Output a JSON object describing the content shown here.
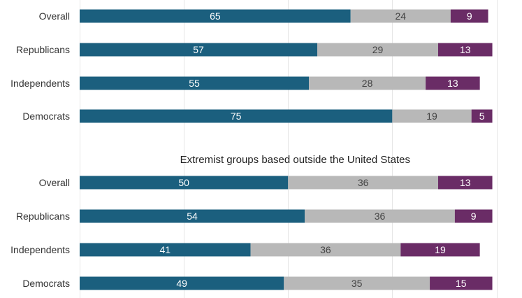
{
  "chart_data": {
    "type": "bar",
    "orientation": "horizontal",
    "stacked": true,
    "xlim": [
      0,
      100
    ],
    "grid": true,
    "colors": [
      "#1b5f7e",
      "#b8b8b8",
      "#6a2c66"
    ],
    "label_colors": [
      "#ffffff",
      "#444444",
      "#ffffff"
    ],
    "panels": [
      {
        "title": "",
        "categories": [
          "Overall",
          "Republicans",
          "Independents",
          "Democrats"
        ],
        "series": [
          {
            "values": [
              65,
              57,
              55,
              75
            ]
          },
          {
            "values": [
              24,
              29,
              28,
              19
            ]
          },
          {
            "values": [
              9,
              13,
              13,
              5
            ]
          }
        ]
      },
      {
        "title": "Extremist groups based outside the United States",
        "categories": [
          "Overall",
          "Republicans",
          "Independents",
          "Democrats"
        ],
        "series": [
          {
            "values": [
              50,
              54,
              41,
              49
            ]
          },
          {
            "values": [
              36,
              36,
              36,
              35
            ]
          },
          {
            "values": [
              13,
              9,
              19,
              15
            ]
          }
        ]
      }
    ]
  }
}
